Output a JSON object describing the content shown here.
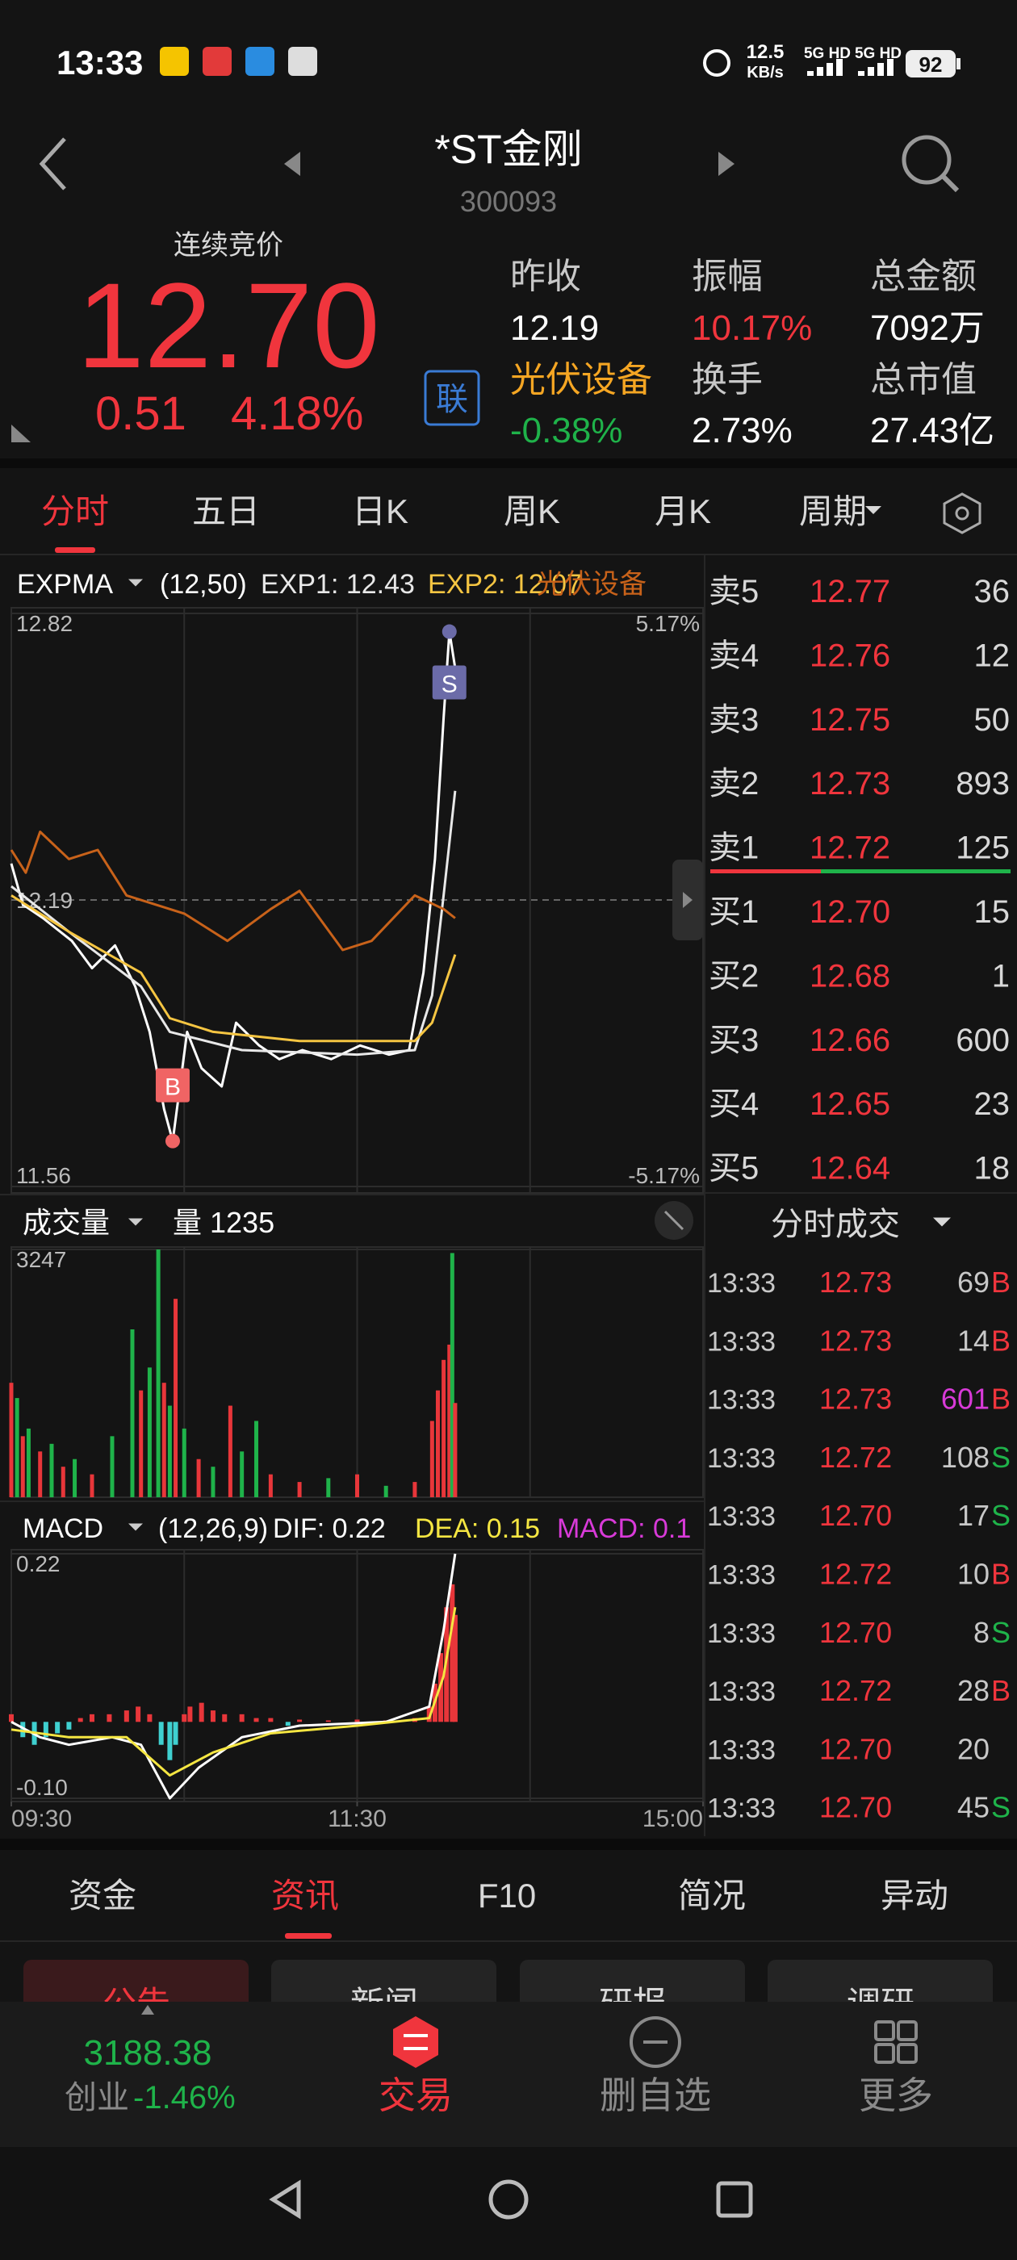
{
  "status_bar": {
    "time": "13:33",
    "net_speed": "12.5",
    "net_unit": "KB/s",
    "signal_1": "5G HD",
    "signal_2": "5G HD",
    "battery": "92"
  },
  "header": {
    "title": "*ST金刚",
    "code": "300093"
  },
  "quote": {
    "status": "连续竞价",
    "price": "12.70",
    "change": "0.51",
    "change_pct": "4.18%",
    "link_badge": "联",
    "fields": [
      {
        "label": "昨收",
        "value": "12.19"
      },
      {
        "label": "振幅",
        "value": "10.17%"
      },
      {
        "label": "总金额",
        "value": "7092万"
      },
      {
        "label": "光伏设备",
        "value": "-0.38%"
      },
      {
        "label": "换手",
        "value": "2.73%"
      },
      {
        "label": "总市值",
        "value": "27.43亿"
      }
    ]
  },
  "tabs": [
    "分时",
    "五日",
    "日K",
    "周K",
    "月K",
    "周期"
  ],
  "chart_data": [
    {
      "type": "line",
      "title": "EXPMA",
      "params": "(12,50)",
      "xlim": [
        0,
        240
      ],
      "ylim": [
        11.56,
        12.82
      ],
      "yticks": [
        11.56,
        12.19,
        12.82
      ],
      "y2lim": [
        -5.17,
        5.17
      ],
      "y2ticks": [
        {
          "value": -5.17,
          "label": "-5.17%"
        },
        {
          "value": 5.17,
          "label": "5.17%"
        }
      ],
      "series": [
        {
          "color": "#ffffff",
          "x": [
            0,
            4,
            11,
            21,
            28,
            36,
            43,
            48,
            53,
            56,
            61,
            66,
            73,
            78,
            86,
            93,
            101,
            111,
            121,
            131,
            138,
            143,
            147,
            150,
            152,
            154
          ],
          "values": [
            12.27,
            12.18,
            12.15,
            12.1,
            12.04,
            12.09,
            12.0,
            11.9,
            11.73,
            11.66,
            11.9,
            11.82,
            11.78,
            11.92,
            11.87,
            11.84,
            11.86,
            11.84,
            11.87,
            11.85,
            11.86,
            12.03,
            12.28,
            12.59,
            12.78,
            12.7
          ]
        },
        {
          "name": "EXP1: 12.43",
          "color": "#e8e8e8",
          "x": [
            0,
            20,
            45,
            55,
            80,
            120,
            140,
            146,
            150,
            154
          ],
          "values": [
            12.22,
            12.12,
            12.0,
            11.9,
            11.86,
            11.85,
            11.86,
            11.98,
            12.2,
            12.43
          ]
        },
        {
          "name": "EXP2: 12.07",
          "color": "#f5c542",
          "x": [
            0,
            20,
            45,
            55,
            70,
            100,
            140,
            146,
            154
          ],
          "values": [
            12.2,
            12.12,
            12.03,
            11.93,
            11.9,
            11.88,
            11.88,
            11.92,
            12.07
          ]
        },
        {
          "name": "光伏设备",
          "color": "#c8621a",
          "x": [
            0,
            5,
            10,
            20,
            30,
            40,
            60,
            75,
            90,
            100,
            115,
            125,
            140,
            150,
            154
          ],
          "values": [
            12.3,
            12.25,
            12.34,
            12.28,
            12.3,
            12.2,
            12.16,
            12.1,
            12.17,
            12.21,
            12.08,
            12.1,
            12.2,
            12.17,
            12.15
          ]
        }
      ],
      "markers": [
        {
          "label": "B",
          "x": 56,
          "value": 11.66,
          "color": "#f06464"
        },
        {
          "label": "S",
          "x": 152,
          "value": 12.78,
          "color": "#6b6ba8"
        }
      ]
    },
    {
      "type": "bar",
      "title": "成交量",
      "legend": "量 1235",
      "xlim": [
        0,
        240
      ],
      "ylim": [
        0,
        3247
      ],
      "yticks": [
        3247
      ],
      "x": [
        0,
        2,
        4,
        6,
        10,
        14,
        18,
        22,
        28,
        35,
        42,
        45,
        48,
        51,
        53,
        55,
        57,
        60,
        65,
        70,
        76,
        80,
        85,
        90,
        100,
        110,
        120,
        130,
        140,
        146,
        148,
        150,
        152,
        153,
        154
      ],
      "values": [
        1500,
        1300,
        800,
        900,
        600,
        700,
        400,
        500,
        300,
        800,
        2200,
        1400,
        1700,
        3247,
        1500,
        1200,
        2600,
        900,
        500,
        400,
        1200,
        600,
        1000,
        300,
        200,
        250,
        300,
        150,
        200,
        1000,
        1400,
        1800,
        2000,
        3200,
        1235
      ],
      "colors": [
        "#e8363a",
        "#1fb34a",
        "#e8363a",
        "#1fb34a",
        "#e8363a",
        "#1fb34a",
        "#e8363a",
        "#1fb34a",
        "#e8363a",
        "#1fb34a",
        "#1fb34a",
        "#e8363a",
        "#1fb34a",
        "#1fb34a",
        "#e8363a",
        "#1fb34a",
        "#e8363a",
        "#1fb34a",
        "#e8363a",
        "#1fb34a",
        "#e8363a",
        "#1fb34a",
        "#1fb34a",
        "#e8363a",
        "#e8363a",
        "#1fb34a",
        "#e8363a",
        "#1fb34a",
        "#e8363a",
        "#e8363a",
        "#e8363a",
        "#e8363a",
        "#e8363a",
        "#1fb34a",
        "#e8363a"
      ]
    },
    {
      "type": "macd",
      "title": "MACD",
      "params": "(12,26,9)",
      "xlim": [
        0,
        240
      ],
      "xticks": [
        {
          "value": 0,
          "label": "09:30"
        },
        {
          "value": 120,
          "label": "11:30"
        },
        {
          "value": 240,
          "label": "15:00"
        }
      ],
      "ylim": [
        -0.1,
        0.22
      ],
      "yticks": [
        {
          "value": -0.1,
          "label": "-0.10"
        },
        0.22
      ],
      "bars": {
        "name": "MACD: 0.1",
        "color": "#d83ad8",
        "up_color": "#e8363a",
        "down_color": "#3fd0d0",
        "x": [
          0,
          4,
          8,
          12,
          16,
          20,
          24,
          28,
          34,
          40,
          44,
          48,
          52,
          55,
          57,
          60,
          62,
          66,
          70,
          74,
          80,
          85,
          90,
          96,
          100,
          110,
          120,
          130,
          140,
          145,
          147,
          149,
          151,
          153,
          154
        ],
        "values": [
          0.01,
          -0.02,
          -0.03,
          -0.02,
          -0.015,
          -0.01,
          0.005,
          0.01,
          0.01,
          0.015,
          0.02,
          0.01,
          -0.03,
          -0.05,
          -0.03,
          0.01,
          0.02,
          0.025,
          0.015,
          0.01,
          0.01,
          0.005,
          0.005,
          -0.005,
          0.003,
          0.002,
          0.003,
          0.002,
          0.005,
          0.02,
          0.05,
          0.09,
          0.15,
          0.18,
          0.14
        ]
      },
      "series": [
        {
          "name": "DIF: 0.22",
          "color": "#ffffff",
          "x": [
            0,
            10,
            20,
            35,
            45,
            55,
            65,
            80,
            100,
            130,
            145,
            150,
            154
          ],
          "values": [
            0,
            -0.02,
            -0.03,
            -0.02,
            -0.03,
            -0.1,
            -0.06,
            -0.02,
            -0.005,
            0,
            0.02,
            0.12,
            0.22
          ]
        },
        {
          "name": "DEA: 0.15",
          "color": "#f5e642",
          "x": [
            0,
            20,
            40,
            55,
            70,
            90,
            120,
            145,
            150,
            154
          ],
          "values": [
            -0.01,
            -0.02,
            -0.02,
            -0.07,
            -0.04,
            -0.015,
            -0.005,
            0.005,
            0.06,
            0.15
          ]
        }
      ]
    }
  ],
  "order_book": {
    "asks": [
      {
        "label": "卖5",
        "price": "12.77",
        "volume": "36"
      },
      {
        "label": "卖4",
        "price": "12.76",
        "volume": "12"
      },
      {
        "label": "卖3",
        "price": "12.75",
        "volume": "50"
      },
      {
        "label": "卖2",
        "price": "12.73",
        "volume": "893"
      },
      {
        "label": "卖1",
        "price": "12.72",
        "volume": "125"
      }
    ],
    "bids": [
      {
        "label": "买1",
        "price": "12.70",
        "volume": "15"
      },
      {
        "label": "买2",
        "price": "12.68",
        "volume": "1"
      },
      {
        "label": "买3",
        "price": "12.66",
        "volume": "600"
      },
      {
        "label": "买4",
        "price": "12.65",
        "volume": "23"
      },
      {
        "label": "买5",
        "price": "12.64",
        "volume": "18"
      }
    ]
  },
  "trades": {
    "title": "分时成交",
    "rows": [
      {
        "time": "13:33",
        "price": "12.73",
        "volume": "69",
        "side": "B"
      },
      {
        "time": "13:33",
        "price": "12.73",
        "volume": "14",
        "side": "B"
      },
      {
        "time": "13:33",
        "price": "12.73",
        "volume": "601",
        "side": "B"
      },
      {
        "time": "13:33",
        "price": "12.72",
        "volume": "108",
        "side": "S"
      },
      {
        "time": "13:33",
        "price": "12.70",
        "volume": "17",
        "side": "S"
      },
      {
        "time": "13:33",
        "price": "12.72",
        "volume": "10",
        "side": "B"
      },
      {
        "time": "13:33",
        "price": "12.70",
        "volume": "8",
        "side": "S"
      },
      {
        "time": "13:33",
        "price": "12.72",
        "volume": "28",
        "side": "B"
      },
      {
        "time": "13:33",
        "price": "12.70",
        "volume": "20"
      },
      {
        "time": "13:33",
        "price": "12.70",
        "volume": "45",
        "side": "S"
      }
    ]
  },
  "detail_tabs": [
    "资金",
    "资讯",
    "F10",
    "简况",
    "异动"
  ],
  "sub_tabs": [
    "公告",
    "新闻",
    "研报",
    "调研"
  ],
  "bottom_nav": {
    "index_value": "3188.38",
    "index_name": "创业",
    "index_change": "-1.46%",
    "items": [
      "交易",
      "删自选",
      "更多"
    ]
  }
}
